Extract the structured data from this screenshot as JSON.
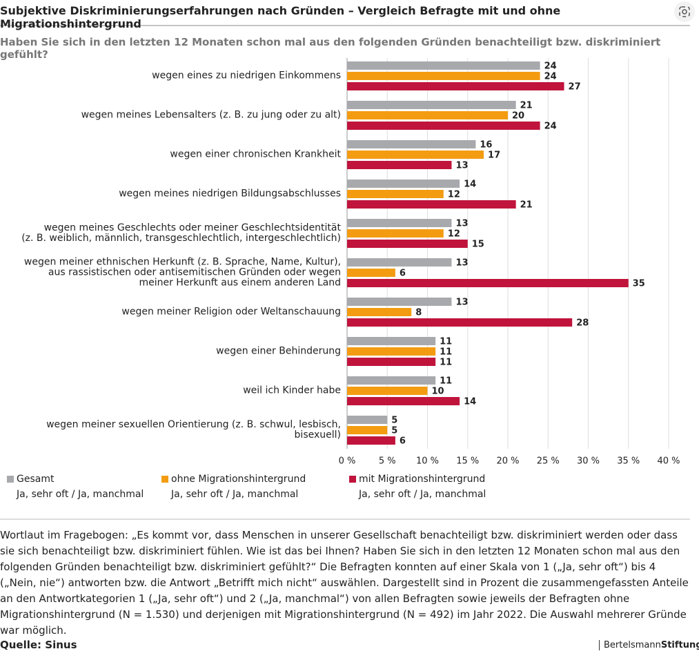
{
  "chart_data": {
    "type": "hbar",
    "title": "Subjektive Diskriminierungserfahrungen nach Gründen – Vergleich Befragte mit und ohne Migrationshintergrund",
    "subtitle": "Haben Sie sich in den letzten 12 Monaten schon mal aus den folgenden Gründen benachteiligt bzw. diskriminiert gefühlt?",
    "categories": [
      "wegen eines zu niedrigen Einkommens",
      "wegen meines Lebensalters (z. B. zu jung oder zu alt)",
      "wegen einer chronischen Krankheit",
      "wegen meines niedrigen Bildungsabschlusses",
      "wegen meines Geschlechts oder meiner Geschlechtsidentität\n(z. B. weiblich, männlich, transgeschlechtlich, intergeschlechtlich)",
      "wegen meiner ethnischen Herkunft (z. B. Sprache, Name, Kultur),\naus rassistischen oder antisemitischen Gründen oder wegen\nmeiner Herkunft aus einem anderen Land",
      "wegen meiner Religion oder Weltanschauung",
      "wegen einer Behinderung",
      "weil ich Kinder habe",
      "wegen meiner sexuellen Orientierung (z. B. schwul, lesbisch, bisexuell)"
    ],
    "series": [
      {
        "name": "Gesamt\nJa, sehr oft / Ja, manchmal",
        "color": "#a7a9ac",
        "values": [
          24,
          21,
          16,
          14,
          13,
          13,
          13,
          11,
          11,
          5
        ]
      },
      {
        "name": "ohne Migrationshintergrund\nJa, sehr oft / Ja, manchmal",
        "color": "#f39c12",
        "values": [
          24,
          20,
          17,
          12,
          12,
          6,
          8,
          11,
          10,
          5
        ]
      },
      {
        "name": "mit Migrationshintergrund\nJa, sehr oft / Ja, manchmal",
        "color": "#c0143c",
        "values": [
          27,
          24,
          13,
          21,
          15,
          35,
          28,
          11,
          14,
          6
        ]
      }
    ],
    "xlim": [
      0,
      40
    ],
    "xticks": [
      {
        "value": 0,
        "label": "0 %"
      },
      {
        "value": 5,
        "label": "5 %"
      },
      {
        "value": 10,
        "label": "10 %"
      },
      {
        "value": 15,
        "label": "15 %"
      },
      {
        "value": 20,
        "label": "20 %"
      },
      {
        "value": 25,
        "label": "25 %"
      },
      {
        "value": 30,
        "label": "30 %"
      },
      {
        "value": 35,
        "label": "35 %"
      },
      {
        "value": 40,
        "label": "40 %"
      }
    ],
    "grid": true,
    "note": "Wortlaut im Fragebogen: „Es kommt vor, dass Menschen in unserer Gesellschaft benachteiligt bzw. diskriminiert werden oder dass sie sich benachteiligt bzw. diskriminiert fühlen. Wie ist das bei Ihnen? Haben Sie sich in den letzten 12 Monaten schon mal aus den folgenden Gründen benachteiligt bzw. diskriminiert gefühlt?“ Die Befragten konnten auf einer Skala von 1 („Ja, sehr oft“) bis 4 („Nein, nie“) antworten bzw. die Antwort „Betrifft mich nicht“ auswählen. Dargestellt sind in Prozent die zusammengefassten Anteile an den Antwortkategorien 1 („Ja, sehr oft“) und 2 („Ja, manchmal“) von allen Befragten sowie jeweils der Befragten ohne Migrationshintergrund (N = 1.530) und derjenigen mit Migrationshintergrund (N = 492) im Jahr 2022. Die Auswahl mehrerer Gründe war möglich.",
    "source": "Quelle: Sinus",
    "logo": [
      "Bertelsmann",
      "Stiftung"
    ]
  }
}
